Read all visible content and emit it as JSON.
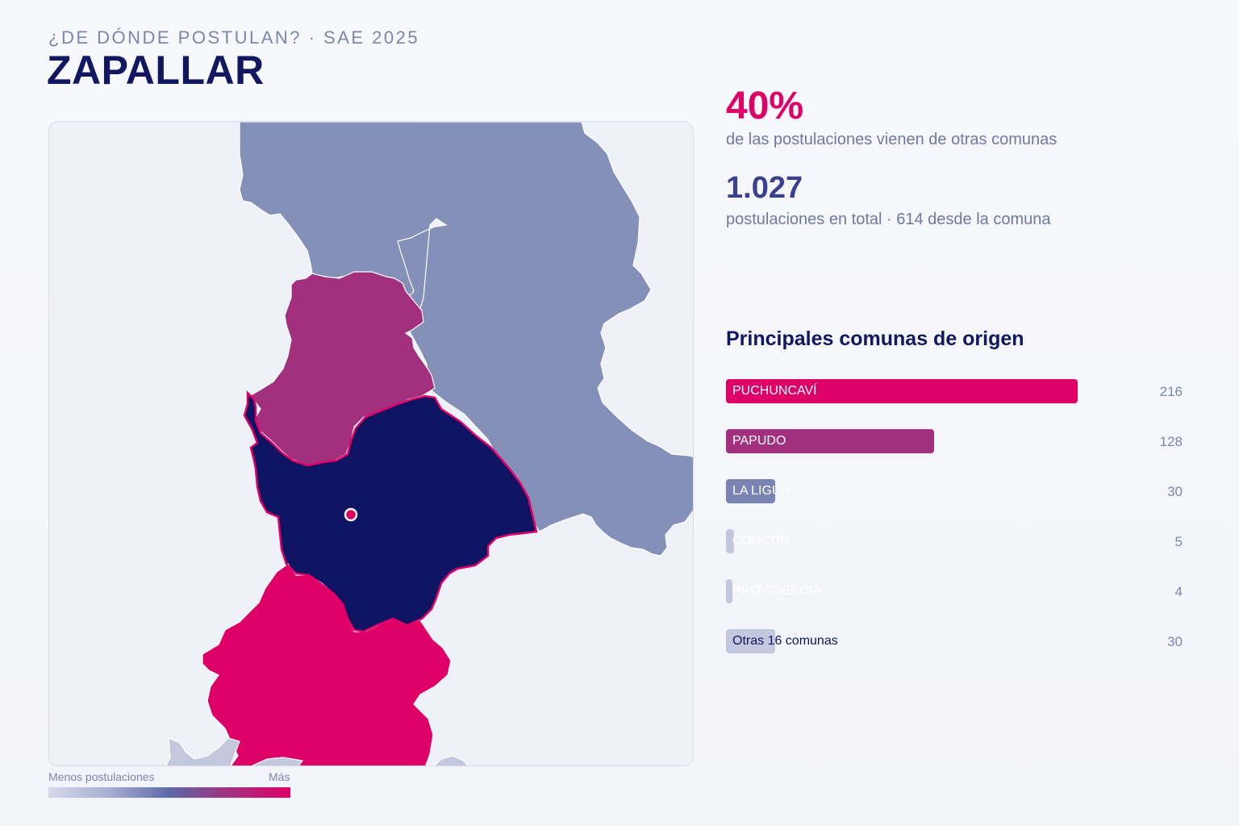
{
  "header": {
    "subtitle": "¿DE DÓNDE POSTULAN? · SAE 2025",
    "title": "ZAPALLAR"
  },
  "kpis": {
    "pct_value": "40%",
    "pct_label": "de las postulaciones vienen de otras comunas",
    "total_value": "1.027",
    "total_label": "postulaciones en total · 614 desde la comuna"
  },
  "map": {
    "regions": [
      {
        "name": "La Ligua",
        "color": "#8590b8"
      },
      {
        "name": "Papudo",
        "color": "#a3307f"
      },
      {
        "name": "Zapallar",
        "color": "#0e1461"
      },
      {
        "name": "Puchuncaví",
        "color": "#de0067"
      },
      {
        "name": "Otras",
        "color": "#c4c8de"
      }
    ],
    "legend": {
      "min_label": "Menos postulaciones",
      "max_label": "Más"
    }
  },
  "chart_data": {
    "type": "bar",
    "title": "Principales comunas de origen",
    "categories": [
      "PUCHUNCAVÍ",
      "PAPUDO",
      "LA LIGUA",
      "CONCÓN",
      "PROVIDENCIA",
      "Otras 16 comunas"
    ],
    "values": [
      216,
      128,
      30,
      5,
      4,
      30
    ],
    "colors": [
      "#de0067",
      "#a3307f",
      "#7a84b2",
      "#c4c8de",
      "#c4c8de",
      "#c4c8de"
    ],
    "label_colors": [
      "#ffffff",
      "#ffffff",
      "#ffffff",
      "#ffffff",
      "#ffffff",
      "#111760"
    ]
  }
}
